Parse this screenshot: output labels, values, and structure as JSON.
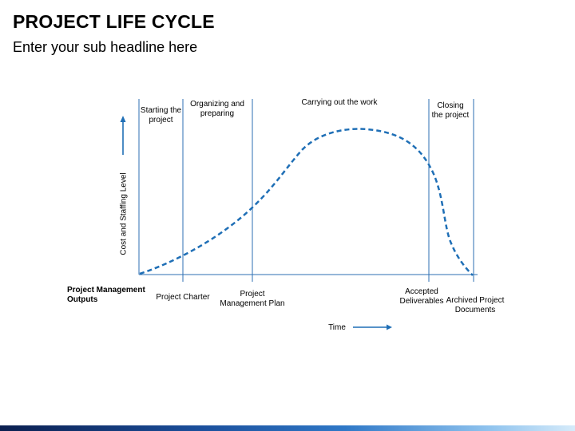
{
  "header": {
    "title": "PROJECT LIFE CYCLE",
    "subtitle": "Enter your sub headline here"
  },
  "diagram": {
    "y_axis_label": "Cost and Staffing Level",
    "x_axis_label": "Time",
    "phases": [
      "Starting the project",
      "Organizing and preparing",
      "Carrying out the work",
      "Closing the project"
    ],
    "outputs_label": "Project Management Outputs",
    "outputs": [
      "Project Charter",
      "Project Management Plan",
      "Accepted Deliverables",
      "Archived Project Documents"
    ]
  },
  "colors": {
    "curve": "#1f6fb6",
    "axis": "#2e6fb3",
    "arrow": "#1f6fb6"
  }
}
